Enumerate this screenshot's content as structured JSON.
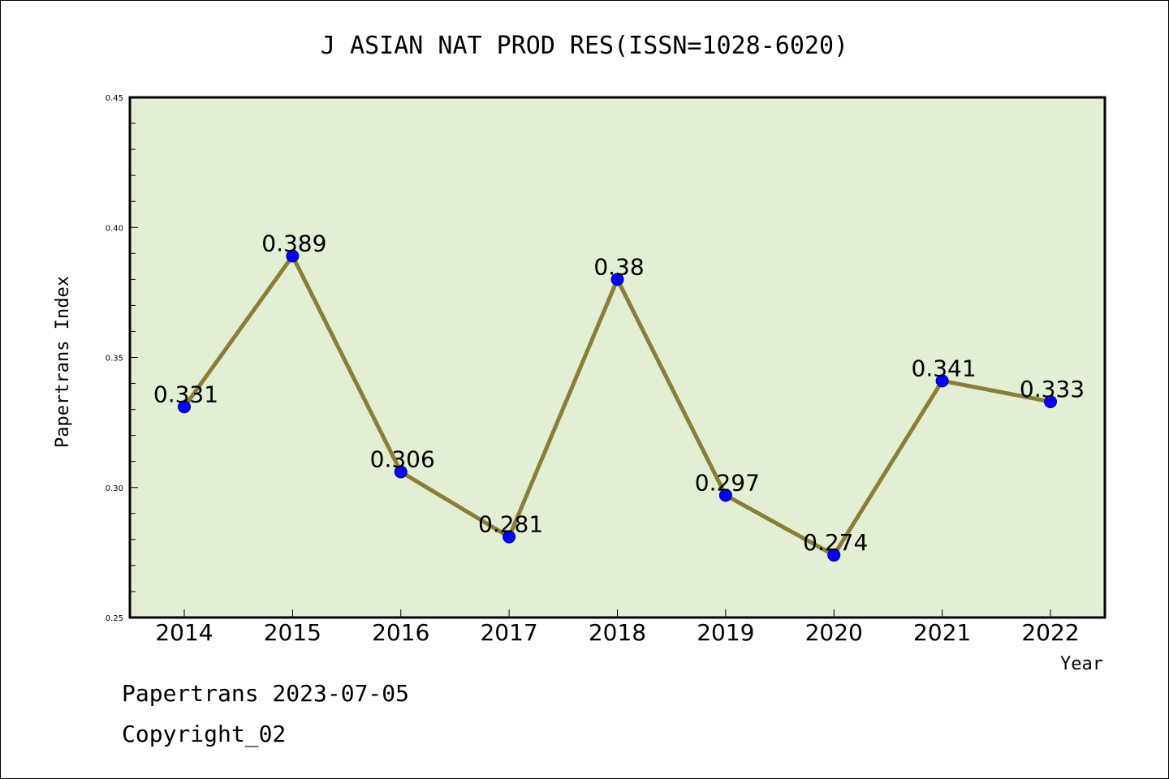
{
  "chart_data": {
    "type": "line",
    "title": "J ASIAN NAT PROD RES(ISSN=1028-6020)",
    "xlabel": "Year",
    "ylabel": "Papertrans Index",
    "categories": [
      "2014",
      "2015",
      "2016",
      "2017",
      "2018",
      "2019",
      "2020",
      "2021",
      "2022"
    ],
    "values": [
      0.331,
      0.389,
      0.306,
      0.281,
      0.38,
      0.297,
      0.274,
      0.341,
      0.333
    ],
    "data_labels": [
      "0.331",
      "0.389",
      "0.306",
      "0.281",
      "0.38",
      "0.297",
      "0.274",
      "0.341",
      "0.333"
    ],
    "ylim": [
      0.25,
      0.45
    ],
    "yticks": [
      "0.25",
      "0.30",
      "0.35",
      "0.40",
      "0.45"
    ],
    "grid": false,
    "colors": {
      "plot_background": "#e2efd5",
      "line": "#8b7d36",
      "marker": "#0000ff"
    }
  },
  "footer": {
    "line1": "Papertrans 2023-07-05",
    "line2": "Copyright_02"
  }
}
